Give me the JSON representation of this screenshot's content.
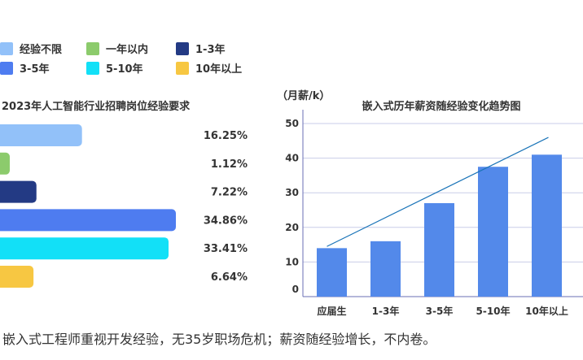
{
  "legend": {
    "items": [
      {
        "label": "经验不限",
        "color": "#92c1f9"
      },
      {
        "label": "一年以内",
        "color": "#8ccb6c"
      },
      {
        "label": "1-3年",
        "color": "#233a84"
      },
      {
        "label": "3-5年",
        "color": "#4e7cf0"
      },
      {
        "label": "5-10年",
        "color": "#12e0f7"
      },
      {
        "label": "10年以上",
        "color": "#f7c742"
      }
    ]
  },
  "caption": "嵌入式工程师重视开发经验，无35岁职场危机；薪资随经验增长，不内卷。",
  "chart_data": [
    {
      "type": "bar",
      "orientation": "horizontal",
      "title": "2023年人工智能行业招聘岗位经验要求",
      "categories": [
        "经验不限",
        "一年以内",
        "1-3年",
        "3-5年",
        "5-10年",
        "10年以上"
      ],
      "values": [
        16.25,
        1.12,
        7.22,
        34.86,
        33.41,
        6.64
      ],
      "value_labels": [
        "16.25%",
        "1.12%",
        "7.22%",
        "34.86%",
        "33.41%",
        "6.64%"
      ],
      "colors": [
        "#92c1f9",
        "#8ccb6c",
        "#233a84",
        "#4e7cf0",
        "#12e0f7",
        "#f7c742"
      ],
      "unit": "%"
    },
    {
      "type": "bar",
      "title": "嵌入式历年薪资随经验变化趋势图",
      "ylabel": "（月薪/k）",
      "categories": [
        "应届生",
        "1-3年",
        "3-5年",
        "5-10年",
        "10年以上"
      ],
      "values": [
        14,
        16,
        27,
        37.5,
        41
      ],
      "trend_line": {
        "start": 14.5,
        "end": 46,
        "color": "#1a74b8"
      },
      "bar_color": "#5389ea",
      "ylim": [
        0,
        50
      ],
      "yticks": [
        "0",
        "10",
        "20",
        "30",
        "40",
        "50"
      ],
      "grid": true
    }
  ]
}
